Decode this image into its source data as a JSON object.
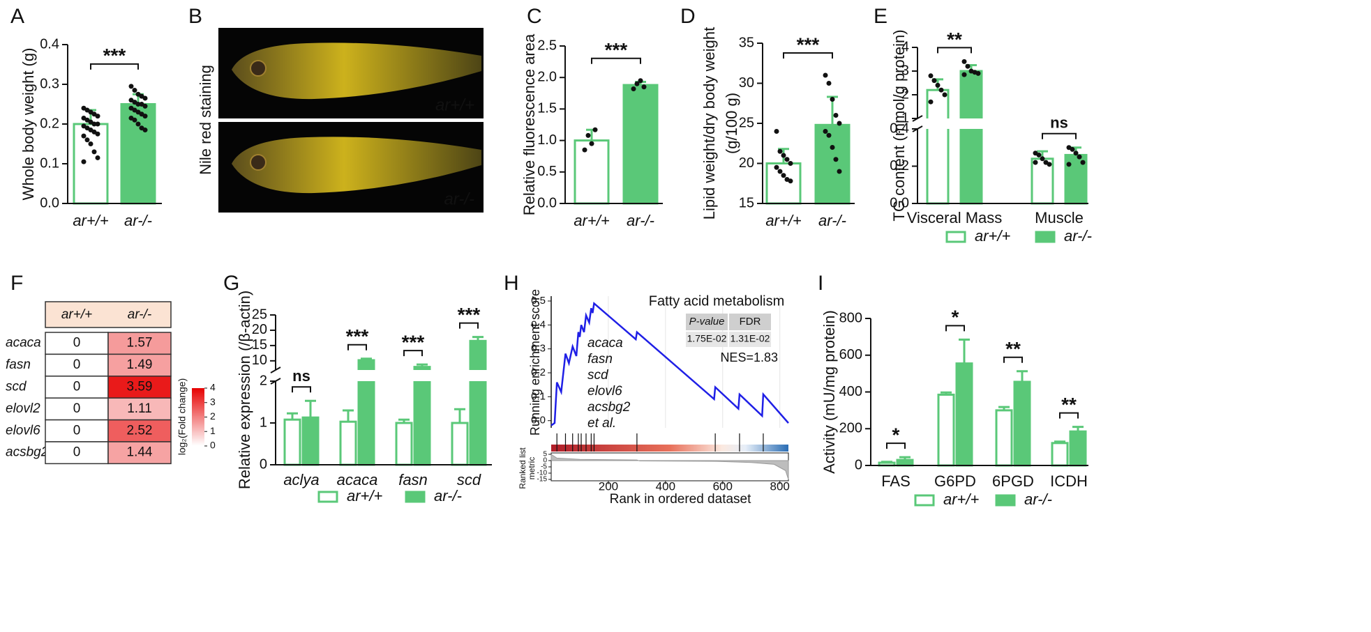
{
  "chart_data": [
    {
      "label": "A",
      "type": "bar",
      "ylabel": "Whole body weight (g)",
      "categories": [
        "ar+/+",
        "ar-/-"
      ],
      "values": [
        0.2,
        0.25
      ],
      "errors": [
        0.035,
        0.025
      ],
      "points": [
        [
          0.24,
          0.235,
          0.23,
          0.225,
          0.22,
          0.215,
          0.21,
          0.205,
          0.2,
          0.2,
          0.195,
          0.19,
          0.185,
          0.18,
          0.175,
          0.17,
          0.16,
          0.15,
          0.13,
          0.115,
          0.105
        ],
        [
          0.295,
          0.285,
          0.275,
          0.27,
          0.265,
          0.26,
          0.255,
          0.25,
          0.25,
          0.245,
          0.24,
          0.235,
          0.23,
          0.225,
          0.22,
          0.215,
          0.21,
          0.2,
          0.19,
          0.185
        ]
      ],
      "colors": [
        "#ffffff",
        "#5ac878"
      ],
      "edge_color": "#5ac878",
      "significance": "***",
      "ylim": [
        0,
        0.4
      ],
      "yticks": [
        {
          "value": 0,
          "label": "0.0"
        },
        0.1,
        0.2,
        0.3,
        0.4
      ]
    },
    {
      "label": "B",
      "type": "image",
      "ylabel": "Nile red staining",
      "captions": [
        "ar+/+",
        "ar-/-"
      ]
    },
    {
      "label": "C",
      "type": "bar",
      "ylabel": "Relative fluorescence area",
      "categories": [
        "ar+/+",
        "ar-/-"
      ],
      "values": [
        1.0,
        1.88
      ],
      "errors": [
        0.17,
        0.05
      ],
      "points": [
        [
          0.85,
          1.08,
          0.95,
          1.17
        ],
        [
          1.82,
          1.9,
          1.95,
          1.85
        ]
      ],
      "colors": [
        "#ffffff",
        "#5ac878"
      ],
      "edge_color": "#5ac878",
      "significance": "***",
      "ylim": [
        0,
        2.5
      ],
      "yticks": [
        {
          "value": 0,
          "label": "0.0"
        },
        0.5,
        {
          "value": 1,
          "label": "1.0"
        },
        1.5,
        {
          "value": 2,
          "label": "2.0"
        },
        2.5
      ]
    },
    {
      "label": "D",
      "type": "bar",
      "ylabel": [
        "Lipid weight/dry body weight",
        "(g/100 g)"
      ],
      "categories": [
        "ar+/+",
        "ar-/-"
      ],
      "values": [
        20.0,
        24.8
      ],
      "errors": [
        1.8,
        3.5
      ],
      "points": [
        [
          24.0,
          21.5,
          21.0,
          20.5,
          20.0,
          19.5,
          19.0,
          18.5,
          18.0,
          17.8
        ],
        [
          31.0,
          30.0,
          28.0,
          26.0,
          25.0,
          24.0,
          23.5,
          22.0,
          20.5,
          19.0
        ]
      ],
      "colors": [
        "#ffffff",
        "#5ac878"
      ],
      "edge_color": "#5ac878",
      "significance": "***",
      "ylim": [
        15,
        35
      ],
      "yticks": [
        15,
        20,
        25,
        30,
        35
      ]
    },
    {
      "label": "E",
      "type": "grouped_bar",
      "ylabel": "TG content (mmol/g protein)",
      "categories": [
        "Visceral Mass",
        "Muscle"
      ],
      "series": [
        {
          "name": "ar+/+",
          "fill": "#ffffff",
          "color": "#5ac878",
          "values": [
            2.2,
            0.24
          ],
          "errors": [
            0.45,
            0.04
          ],
          "points": [
            [
              2.8,
              2.6,
              2.4,
              2.2,
              2.0,
              1.7
            ],
            [
              0.27,
              0.26,
              0.24,
              0.22,
              0.21,
              0.22
            ]
          ]
        },
        {
          "name": "ar-/-",
          "fill": "#5ac878",
          "color": "#5ac878",
          "values": [
            3.0,
            0.26
          ],
          "errors": [
            0.25,
            0.04
          ],
          "points": [
            [
              3.4,
              3.2,
              3.0,
              2.95,
              2.9,
              2.85
            ],
            [
              0.3,
              0.29,
              0.27,
              0.25,
              0.22,
              0.21
            ]
          ]
        }
      ],
      "significance": [
        "**",
        "ns"
      ],
      "legend": true,
      "ylim": [
        0,
        4
      ],
      "ybreak": [
        0.4,
        1
      ],
      "yticks": [
        {
          "value": 0,
          "label": "0.0"
        },
        0.2,
        0.4,
        1,
        2,
        3,
        4
      ]
    },
    {
      "label": "F",
      "type": "heatmap",
      "columns": [
        "ar+/+",
        "ar-/-"
      ],
      "rows": [
        "acaca",
        "fasn",
        "scd",
        "elovl2",
        "elovl6",
        "acsbg2"
      ],
      "values": [
        [
          0,
          1.57
        ],
        [
          0,
          1.49
        ],
        [
          0,
          3.59
        ],
        [
          0,
          1.11
        ],
        [
          0,
          2.52
        ],
        [
          0,
          1.44
        ]
      ],
      "color_min": "#ffffff",
      "color_max": "#e60000",
      "header_color": "#fbe3d3",
      "colorbar_lim": [
        0,
        4
      ],
      "colorbar_ticks": [
        0,
        1,
        2,
        3,
        4
      ],
      "colorbar_label": "log₂(Fold change)"
    },
    {
      "label": "G",
      "type": "grouped_bar",
      "ylabel": "Relative expression (/β-actin)",
      "categories": [
        "aclya",
        "acaca",
        "fasn",
        "scd"
      ],
      "series": [
        {
          "name": "ar+/+",
          "fill": "#ffffff",
          "color": "#5ac878",
          "values": [
            1.08,
            1.03,
            1.0,
            1.0
          ],
          "errors": [
            0.15,
            0.27,
            0.08,
            0.33
          ]
        },
        {
          "name": "ar-/-",
          "fill": "#5ac878",
          "color": "#5ac878",
          "values": [
            1.13,
            10.2,
            8.0,
            16.5
          ],
          "errors": [
            0.4,
            0.5,
            0.8,
            1.3
          ]
        }
      ],
      "significance": [
        "ns",
        "***",
        "***",
        "***"
      ],
      "legend": true,
      "ylim": [
        0,
        25
      ],
      "ybreak": [
        2,
        7
      ],
      "yticks": [
        0,
        1,
        2,
        10,
        15,
        20,
        25
      ]
    },
    {
      "label": "H",
      "type": "gsea",
      "title": "Fatty acid metabolism",
      "ylabel": "Running enrichment score",
      "xlabel": "Rank in ordered dataset",
      "metric_label": [
        "Ranked list",
        "metric"
      ],
      "stats_headers": [
        "P-value",
        "FDR"
      ],
      "stats_values": [
        "1.75E-02",
        "1.31E-02"
      ],
      "annotation": "NES=1.83",
      "genes": [
        "acaca",
        "fasn",
        "scd",
        "elovl6",
        "acsbg2",
        "et al."
      ],
      "color": "#1f1fe6",
      "gene_color": "#e8141c",
      "x": [
        0,
        12,
        20,
        35,
        50,
        62,
        75,
        88,
        95,
        100,
        105,
        115,
        122,
        133,
        140,
        145,
        150,
        296,
        300,
        570,
        574,
        655,
        659,
        738,
        742,
        830
      ],
      "values": [
        -0.02,
        -0.01,
        0.16,
        0.12,
        0.28,
        0.24,
        0.31,
        0.27,
        0.37,
        0.35,
        0.4,
        0.37,
        0.44,
        0.41,
        0.47,
        0.45,
        0.49,
        0.34,
        0.37,
        0.09,
        0.14,
        0.05,
        0.11,
        0.02,
        0.11,
        -0.01
      ],
      "hits": [
        20,
        50,
        75,
        95,
        105,
        122,
        140,
        150,
        300,
        574,
        659,
        742
      ],
      "metric_x": [
        0,
        20,
        100,
        300,
        310,
        580,
        700,
        780,
        820,
        830
      ],
      "metric_values": [
        5,
        2,
        1,
        0.5,
        -0.3,
        -0.6,
        -1.5,
        -3,
        -8,
        -15
      ],
      "xlim": [
        0,
        830
      ],
      "xticks": [
        200,
        400,
        600,
        800
      ],
      "ylim": [
        -0.03,
        0.5
      ],
      "yticks": [
        {
          "value": 0,
          "label": "0.0"
        },
        0.1,
        0.2,
        0.3,
        0.4,
        0.5
      ],
      "metric_ylim": [
        -15,
        5
      ],
      "metric_yticks": [
        5,
        0,
        -5,
        -10,
        -15
      ],
      "grid": true
    },
    {
      "label": "I",
      "type": "grouped_bar",
      "ylabel": "Activity (mU/mg protein)",
      "categories": [
        "FAS",
        "G6PD",
        "6PGD",
        "ICDH"
      ],
      "series": [
        {
          "name": "ar+/+",
          "fill": "#ffffff",
          "color": "#5ac878",
          "values": [
            15,
            385,
            300,
            122
          ],
          "errors": [
            5,
            12,
            18,
            8
          ]
        },
        {
          "name": "ar-/-",
          "fill": "#5ac878",
          "color": "#5ac878",
          "values": [
            30,
            555,
            455,
            185
          ],
          "errors": [
            15,
            130,
            58,
            25
          ]
        }
      ],
      "significance": [
        "*",
        "*",
        "**",
        "**"
      ],
      "legend": true,
      "ylim": [
        0,
        800
      ],
      "yticks": [
        0,
        200,
        400,
        600,
        800
      ]
    }
  ]
}
